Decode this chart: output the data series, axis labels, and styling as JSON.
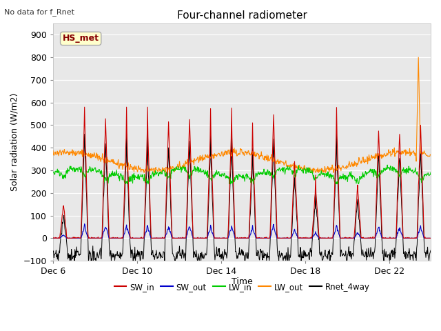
{
  "title": "Four-channel radiometer",
  "topleft_text": "No data for f_Rnet",
  "station_label": "HS_met",
  "ylabel": "Solar radiation (W/m2)",
  "xlabel": "Time",
  "ylim": [
    -100,
    950
  ],
  "yticks": [
    -100,
    0,
    100,
    200,
    300,
    400,
    500,
    600,
    700,
    800,
    900
  ],
  "fig_bg": "#ffffff",
  "plot_bg": "#e8e8e8",
  "grid_color": "#ffffff",
  "legend_entries": [
    "SW_in",
    "SW_out",
    "LW_in",
    "LW_out",
    "Rnet_4way"
  ],
  "legend_colors": [
    "#cc0000",
    "#0000cc",
    "#00cc00",
    "#ff8800",
    "#000000"
  ],
  "x_tick_labels": [
    "Dec 6",
    "Dec 10",
    "Dec 14",
    "Dec 18",
    "Dec 22"
  ],
  "SW_in_color": "#cc0000",
  "SW_out_color": "#0000cc",
  "LW_in_color": "#00cc00",
  "LW_out_color": "#ff8800",
  "Rnet_color": "#000000",
  "station_text_color": "#880000",
  "station_box_face": "#ffffcc",
  "station_box_edge": "#aaaaaa"
}
